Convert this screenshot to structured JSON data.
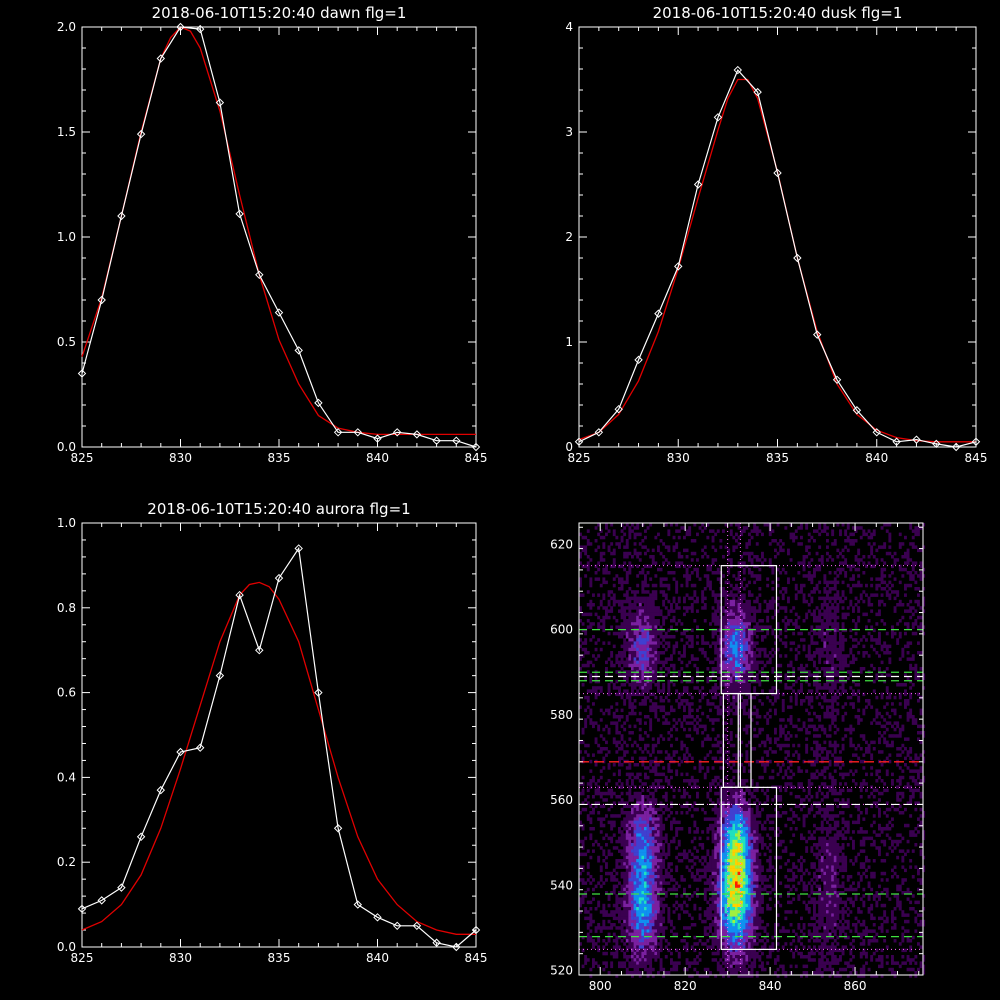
{
  "chart_data": [
    {
      "type": "line",
      "title": "2018-06-10T15:20:40 dawn flg=1",
      "xlim": [
        825,
        845
      ],
      "ylim": [
        0,
        2.0
      ],
      "x_ticks": [
        "825",
        "830",
        "835",
        "840",
        "845"
      ],
      "y_ticks": [
        "0.0",
        "0.5",
        "1.0",
        "1.5",
        "2.0"
      ],
      "x_tick_values": [
        825,
        830,
        835,
        840,
        845
      ],
      "y_tick_values": [
        0,
        0.5,
        1.0,
        1.5,
        2.0
      ],
      "series": [
        {
          "role": "data",
          "color": "#ffffff",
          "marker": "diamond",
          "x": [
            825,
            826,
            827,
            828,
            829,
            830,
            831,
            832,
            833,
            834,
            835,
            836,
            837,
            838,
            839,
            840,
            841,
            842,
            843,
            844,
            845
          ],
          "y": [
            0.35,
            0.7,
            1.1,
            1.49,
            1.85,
            2.0,
            1.99,
            1.64,
            1.11,
            0.82,
            0.64,
            0.46,
            0.21,
            0.07,
            0.07,
            0.04,
            0.07,
            0.06,
            0.03,
            0.03,
            0.0
          ]
        },
        {
          "role": "fit",
          "color": "#e00000",
          "x": [
            825,
            826,
            827,
            828,
            829,
            829.5,
            830,
            830.5,
            831,
            832,
            833,
            834,
            835,
            836,
            837,
            838,
            839,
            840,
            841,
            842,
            843,
            844,
            845
          ],
          "y": [
            0.43,
            0.71,
            1.1,
            1.5,
            1.85,
            1.95,
            2.0,
            1.98,
            1.9,
            1.6,
            1.2,
            0.82,
            0.51,
            0.3,
            0.15,
            0.09,
            0.07,
            0.06,
            0.06,
            0.06,
            0.06,
            0.06,
            0.06
          ]
        }
      ]
    },
    {
      "type": "line",
      "title": "2018-06-10T15:20:40 dusk flg=1",
      "xlim": [
        825,
        845
      ],
      "ylim": [
        0,
        4
      ],
      "x_ticks": [
        "825",
        "830",
        "835",
        "840",
        "845"
      ],
      "y_ticks": [
        "0",
        "1",
        "2",
        "3",
        "4"
      ],
      "x_tick_values": [
        825,
        830,
        835,
        840,
        845
      ],
      "y_tick_values": [
        0,
        1,
        2,
        3,
        4
      ],
      "series": [
        {
          "role": "data",
          "color": "#ffffff",
          "marker": "diamond",
          "x": [
            825,
            826,
            827,
            828,
            829,
            830,
            831,
            832,
            833,
            834,
            835,
            836,
            837,
            838,
            839,
            840,
            841,
            842,
            843,
            844,
            845
          ],
          "y": [
            0.05,
            0.14,
            0.36,
            0.83,
            1.27,
            1.72,
            2.5,
            3.14,
            3.59,
            3.38,
            2.61,
            1.8,
            1.07,
            0.64,
            0.35,
            0.14,
            0.05,
            0.07,
            0.03,
            0.0,
            0.05
          ]
        },
        {
          "role": "fit",
          "color": "#e00000",
          "x": [
            825,
            826,
            827,
            828,
            829,
            830,
            831,
            832,
            832.5,
            833,
            833.5,
            834,
            835,
            836,
            837,
            838,
            839,
            840,
            841,
            842,
            843,
            844,
            845
          ],
          "y": [
            0.07,
            0.14,
            0.31,
            0.63,
            1.1,
            1.7,
            2.37,
            3.02,
            3.32,
            3.5,
            3.5,
            3.32,
            2.62,
            1.8,
            1.1,
            0.6,
            0.31,
            0.16,
            0.09,
            0.06,
            0.05,
            0.05,
            0.05
          ]
        }
      ]
    },
    {
      "type": "line",
      "title": "2018-06-10T15:20:40 aurora flg=1",
      "xlim": [
        825,
        845
      ],
      "ylim": [
        0,
        1.0
      ],
      "x_ticks": [
        "825",
        "830",
        "835",
        "840",
        "845"
      ],
      "y_ticks": [
        "0.0",
        "0.2",
        "0.4",
        "0.6",
        "0.8",
        "1.0"
      ],
      "x_tick_values": [
        825,
        830,
        835,
        840,
        845
      ],
      "y_tick_values": [
        0,
        0.2,
        0.4,
        0.6,
        0.8,
        1.0
      ],
      "series": [
        {
          "role": "data",
          "color": "#ffffff",
          "marker": "diamond",
          "x": [
            825,
            826,
            827,
            828,
            829,
            830,
            831,
            832,
            833,
            834,
            835,
            836,
            837,
            838,
            839,
            840,
            841,
            842,
            843,
            844,
            845
          ],
          "y": [
            0.09,
            0.11,
            0.14,
            0.26,
            0.37,
            0.46,
            0.47,
            0.64,
            0.83,
            0.7,
            0.87,
            0.94,
            0.6,
            0.28,
            0.1,
            0.07,
            0.05,
            0.05,
            0.01,
            0.0,
            0.04
          ]
        },
        {
          "role": "fit",
          "color": "#e00000",
          "x": [
            825,
            826,
            827,
            828,
            829,
            830,
            831,
            832,
            833,
            833.5,
            834,
            834.5,
            835,
            836,
            837,
            838,
            839,
            840,
            841,
            842,
            843,
            844,
            845
          ],
          "y": [
            0.04,
            0.06,
            0.1,
            0.17,
            0.28,
            0.42,
            0.57,
            0.72,
            0.83,
            0.855,
            0.86,
            0.85,
            0.82,
            0.72,
            0.56,
            0.4,
            0.26,
            0.16,
            0.1,
            0.06,
            0.04,
            0.03,
            0.03
          ]
        }
      ]
    },
    {
      "type": "heatmap",
      "title": "",
      "xlim": [
        795,
        876
      ],
      "ylim": [
        519,
        625
      ],
      "x_ticks": [
        "800",
        "820",
        "840",
        "860"
      ],
      "y_ticks": [
        "520",
        "540",
        "560",
        "580",
        "600",
        "620"
      ],
      "x_tick_values": [
        800,
        820,
        840,
        860
      ],
      "y_tick_values": [
        520,
        540,
        560,
        580,
        600,
        620
      ],
      "colormap": [
        "#000000",
        "#3a0050",
        "#7a20a0",
        "#4040d0",
        "#1090f0",
        "#20e0c0",
        "#a0f040",
        "#ffd000",
        "#ff2000"
      ],
      "sources": [
        {
          "cx": 810,
          "cy": 536,
          "sx": 2.6,
          "sy": 9,
          "amp": 0.55
        },
        {
          "cx": 810,
          "cy": 552,
          "sx": 2.6,
          "sy": 6,
          "amp": 0.32
        },
        {
          "cx": 810,
          "cy": 596,
          "sx": 2.6,
          "sy": 7,
          "amp": 0.35
        },
        {
          "cx": 832,
          "cy": 538,
          "sx": 2.8,
          "sy": 9,
          "amp": 0.85
        },
        {
          "cx": 832,
          "cy": 552,
          "sx": 2.6,
          "sy": 6,
          "amp": 0.45
        },
        {
          "cx": 832,
          "cy": 596,
          "sx": 2.6,
          "sy": 7,
          "amp": 0.45
        },
        {
          "cx": 854,
          "cy": 540,
          "sx": 2.4,
          "sy": 12,
          "amp": 0.18
        },
        {
          "cx": 854,
          "cy": 596,
          "sx": 2.4,
          "sy": 10,
          "amp": 0.14
        }
      ],
      "boxes": [
        {
          "x": [
            828.5,
            841.5
          ],
          "y": [
            585,
            615
          ]
        },
        {
          "x": [
            829,
            833
          ],
          "y": [
            563,
            585
          ]
        },
        {
          "x": [
            832.5,
            835.5
          ],
          "y": [
            563,
            585
          ]
        },
        {
          "x": [
            828.5,
            841.5
          ],
          "y": [
            525,
            563
          ]
        }
      ],
      "green_dashed_y": [
        528,
        538,
        588,
        590,
        600
      ],
      "white_dashed_y": [
        559,
        589
      ],
      "red_dashed_y": [
        569
      ],
      "magenta_dotted_y": [
        525,
        559,
        563,
        585,
        615
      ],
      "magenta_dotted_x": [
        830,
        833
      ]
    }
  ]
}
